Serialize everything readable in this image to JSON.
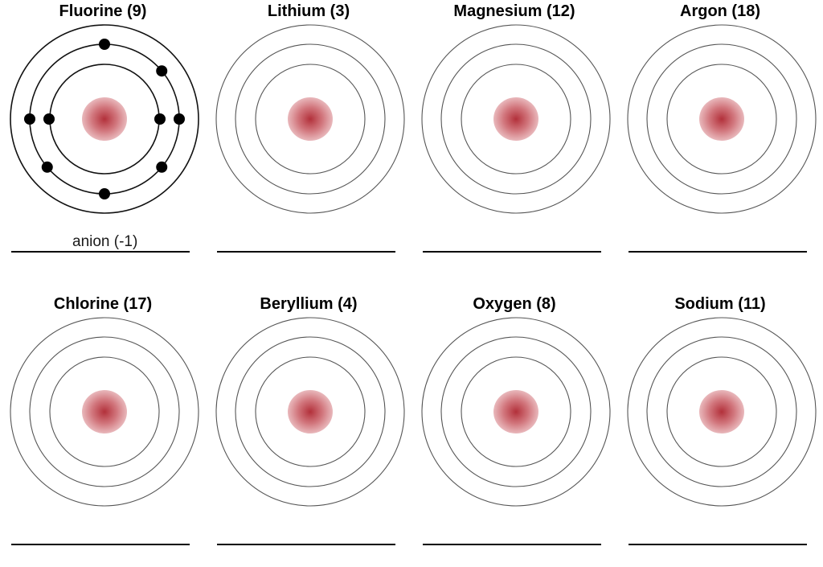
{
  "nucleus_color": "#b2303a",
  "shell_color_blank": "#555555",
  "shell_color_filled": "#111111",
  "electron_color": "#000000",
  "atoms": [
    {
      "title": "Fluorine (9)",
      "answer": "anion (-1)",
      "shells": [
        2,
        7
      ],
      "drawn_electrons": true
    },
    {
      "title": "Lithium (3)",
      "answer": "",
      "shells": [],
      "drawn_electrons": false
    },
    {
      "title": "Magnesium (12)",
      "answer": "",
      "shells": [],
      "drawn_electrons": false
    },
    {
      "title": "Argon (18)",
      "answer": "",
      "shells": [],
      "drawn_electrons": false
    },
    {
      "title": "Chlorine (17)",
      "answer": "",
      "shells": [],
      "drawn_electrons": false
    },
    {
      "title": "Beryllium (4)",
      "answer": "",
      "shells": [],
      "drawn_electrons": false
    },
    {
      "title": "Oxygen (8)",
      "answer": "",
      "shells": [],
      "drawn_electrons": false
    },
    {
      "title": "Sodium (11)",
      "answer": "",
      "shells": [],
      "drawn_electrons": false
    }
  ]
}
